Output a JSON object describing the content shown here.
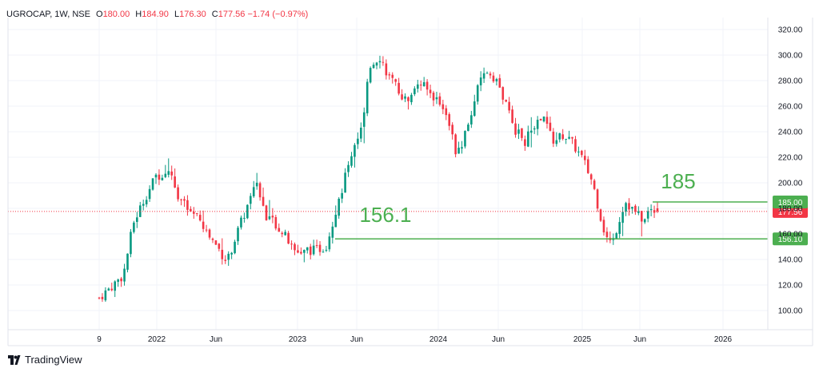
{
  "header": {
    "symbol": "UGROCAP, 1W, NSE",
    "open_label": "O",
    "open": "180.00",
    "high_label": "H",
    "high": "184.90",
    "low_label": "L",
    "low": "176.30",
    "close_label": "C",
    "close": "177.56",
    "change": "−1.74 (−0.97%)"
  },
  "brand": {
    "name": "TradingView",
    "icon": "tradingview-logo-icon"
  },
  "colors": {
    "up": "#089981",
    "down": "#f23645",
    "level": "#4caf50",
    "grid": "#f0f3fa",
    "axis": "#e0e3eb"
  },
  "chart_data": {
    "type": "candlestick",
    "title": "UGROCAP, 1W, NSE",
    "x_ticks": [
      "9",
      "2022",
      "Jun",
      "2023",
      "Jun",
      "2024",
      "Jun",
      "2025",
      "Jun",
      "2026"
    ],
    "y_ticks": [
      100,
      120,
      140,
      160,
      180,
      200,
      220,
      240,
      260,
      280,
      300,
      320
    ],
    "ylim": [
      90,
      330
    ],
    "grid": true,
    "current_price": {
      "value": 177.56,
      "label": "177.56"
    },
    "levels": [
      {
        "value": 185.0,
        "label": "185.00",
        "annotation": "185"
      },
      {
        "value": 156.1,
        "label": "156.10",
        "annotation": "156.1"
      }
    ],
    "last_bar": {
      "open": 180.0,
      "high": 184.9,
      "low": 176.3,
      "close": 177.56
    },
    "price_path": [
      [
        2021.85,
        110
      ],
      [
        2021.92,
        118
      ],
      [
        2022.0,
        128
      ],
      [
        2022.06,
        168
      ],
      [
        2022.12,
        185
      ],
      [
        2022.2,
        205
      ],
      [
        2022.28,
        210
      ],
      [
        2022.34,
        190
      ],
      [
        2022.4,
        178
      ],
      [
        2022.46,
        172
      ],
      [
        2022.52,
        160
      ],
      [
        2022.58,
        150
      ],
      [
        2022.64,
        138
      ],
      [
        2022.7,
        160
      ],
      [
        2022.76,
        180
      ],
      [
        2022.82,
        198
      ],
      [
        2022.88,
        175
      ],
      [
        2022.94,
        168
      ],
      [
        2023.0,
        158
      ],
      [
        2023.06,
        145
      ],
      [
        2023.12,
        148
      ],
      [
        2023.18,
        147
      ],
      [
        2023.25,
        150
      ],
      [
        2023.3,
        172
      ],
      [
        2023.36,
        200
      ],
      [
        2023.42,
        228
      ],
      [
        2023.48,
        245
      ],
      [
        2023.52,
        290
      ],
      [
        2023.58,
        300
      ],
      [
        2023.64,
        283
      ],
      [
        2023.7,
        272
      ],
      [
        2023.76,
        262
      ],
      [
        2023.82,
        280
      ],
      [
        2023.88,
        272
      ],
      [
        2023.94,
        265
      ],
      [
        2024.0,
        255
      ],
      [
        2024.06,
        220
      ],
      [
        2024.12,
        240
      ],
      [
        2024.18,
        270
      ],
      [
        2024.24,
        288
      ],
      [
        2024.3,
        282
      ],
      [
        2024.36,
        262
      ],
      [
        2024.42,
        242
      ],
      [
        2024.48,
        232
      ],
      [
        2024.54,
        245
      ],
      [
        2024.6,
        250
      ],
      [
        2024.66,
        232
      ],
      [
        2024.72,
        238
      ],
      [
        2024.78,
        230
      ],
      [
        2024.84,
        218
      ],
      [
        2024.9,
        200
      ],
      [
        2024.94,
        178
      ],
      [
        2024.98,
        158
      ],
      [
        2025.02,
        152
      ],
      [
        2025.06,
        170
      ],
      [
        2025.1,
        186
      ],
      [
        2025.14,
        180
      ],
      [
        2025.2,
        172
      ],
      [
        2025.26,
        179
      ],
      [
        2025.3,
        178
      ]
    ]
  }
}
